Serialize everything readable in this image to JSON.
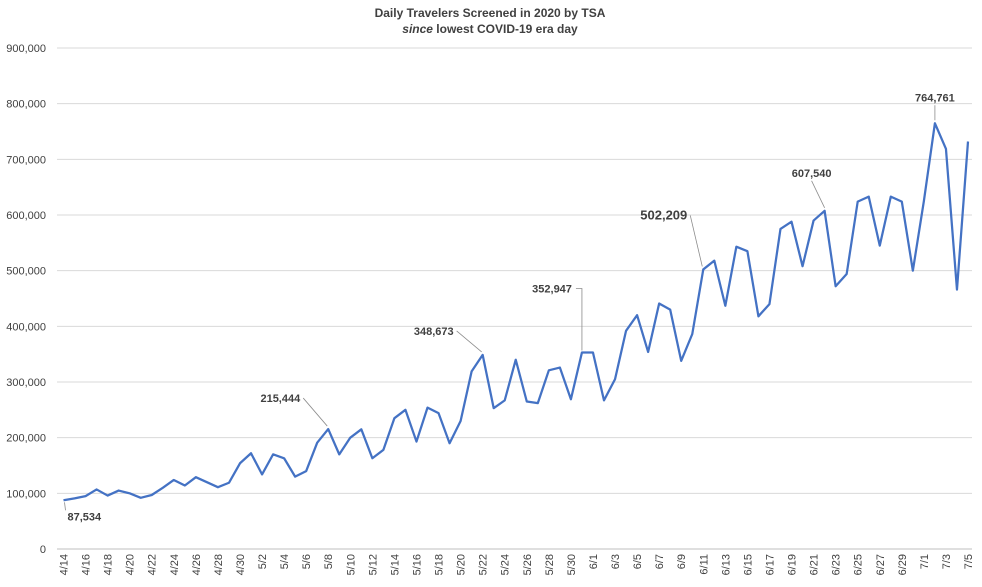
{
  "chart_data": {
    "type": "line",
    "title": "Daily Travelers Screened in 2020 by TSA",
    "subtitle_italic": "since",
    "subtitle_rest": " lowest COVID-19 era day",
    "xlabel": "",
    "ylabel": "",
    "ylim": [
      0,
      900000
    ],
    "yticks": [
      "0",
      "100,000",
      "200,000",
      "300,000",
      "400,000",
      "500,000",
      "600,000",
      "700,000",
      "800,000",
      "900,000"
    ],
    "grid": true,
    "legend": "none",
    "x": [
      "4/14",
      "4/15",
      "4/16",
      "4/17",
      "4/18",
      "4/19",
      "4/20",
      "4/21",
      "4/22",
      "4/23",
      "4/24",
      "4/25",
      "4/26",
      "4/27",
      "4/28",
      "4/29",
      "4/30",
      "5/1",
      "5/2",
      "5/3",
      "5/4",
      "5/5",
      "5/6",
      "5/7",
      "5/8",
      "5/9",
      "5/10",
      "5/11",
      "5/12",
      "5/13",
      "5/14",
      "5/15",
      "5/16",
      "5/17",
      "5/18",
      "5/19",
      "5/20",
      "5/21",
      "5/22",
      "5/23",
      "5/24",
      "5/25",
      "5/26",
      "5/27",
      "5/28",
      "5/29",
      "5/30",
      "5/31",
      "6/1",
      "6/2",
      "6/3",
      "6/4",
      "6/5",
      "6/6",
      "6/7",
      "6/8",
      "6/9",
      "6/10",
      "6/11",
      "6/12",
      "6/13",
      "6/14",
      "6/15",
      "6/16",
      "6/17",
      "6/18",
      "6/19",
      "6/20",
      "6/21",
      "6/22",
      "6/23",
      "6/24",
      "6/25",
      "6/26",
      "6/27",
      "6/28",
      "6/29",
      "6/30",
      "7/1",
      "7/2",
      "7/3",
      "7/4",
      "7/5"
    ],
    "xtick_labels": [
      "4/14",
      "4/16",
      "4/18",
      "4/20",
      "4/22",
      "4/24",
      "4/26",
      "4/28",
      "4/30",
      "5/2",
      "5/4",
      "5/6",
      "5/8",
      "5/10",
      "5/12",
      "5/14",
      "5/16",
      "5/18",
      "5/20",
      "5/22",
      "5/24",
      "5/26",
      "5/28",
      "5/30",
      "6/1",
      "6/3",
      "6/5",
      "6/7",
      "6/9",
      "6/11",
      "6/13",
      "6/15",
      "6/17",
      "6/19",
      "6/21",
      "6/23",
      "6/25",
      "6/27",
      "6/29",
      "7/1",
      "7/3",
      "7/5"
    ],
    "series": [
      {
        "color": "#4472c4",
        "values": [
          87534,
          91000,
          95000,
          107000,
          96000,
          105000,
          100000,
          92000,
          97000,
          110000,
          124000,
          114000,
          129000,
          120000,
          111000,
          119000,
          154000,
          172000,
          134000,
          170000,
          163000,
          130000,
          140000,
          191000,
          215444,
          170000,
          200000,
          215000,
          163000,
          178000,
          235000,
          250000,
          193000,
          254000,
          244000,
          190000,
          230000,
          319000,
          348673,
          253000,
          267000,
          340000,
          265000,
          262000,
          321000,
          326000,
          269000,
          352947,
          353000,
          267000,
          305000,
          392000,
          420000,
          354000,
          441000,
          430000,
          338000,
          386000,
          502209,
          518000,
          437000,
          543000,
          535000,
          418000,
          440000,
          575000,
          588000,
          508000,
          590000,
          607540,
          472000,
          494000,
          624000,
          633000,
          545000,
          633000,
          624000,
          500000,
          625000,
          764761,
          719000,
          466000,
          732000
        ]
      }
    ],
    "annotations": [
      {
        "text": "87,534",
        "index": 0
      },
      {
        "text": "215,444",
        "index": 24
      },
      {
        "text": "348,673",
        "index": 38
      },
      {
        "text": "352,947",
        "index": 47
      },
      {
        "text": "502,209",
        "index": 58
      },
      {
        "text": "607,540",
        "index": 69
      },
      {
        "text": "764,761",
        "index": 79
      }
    ]
  }
}
